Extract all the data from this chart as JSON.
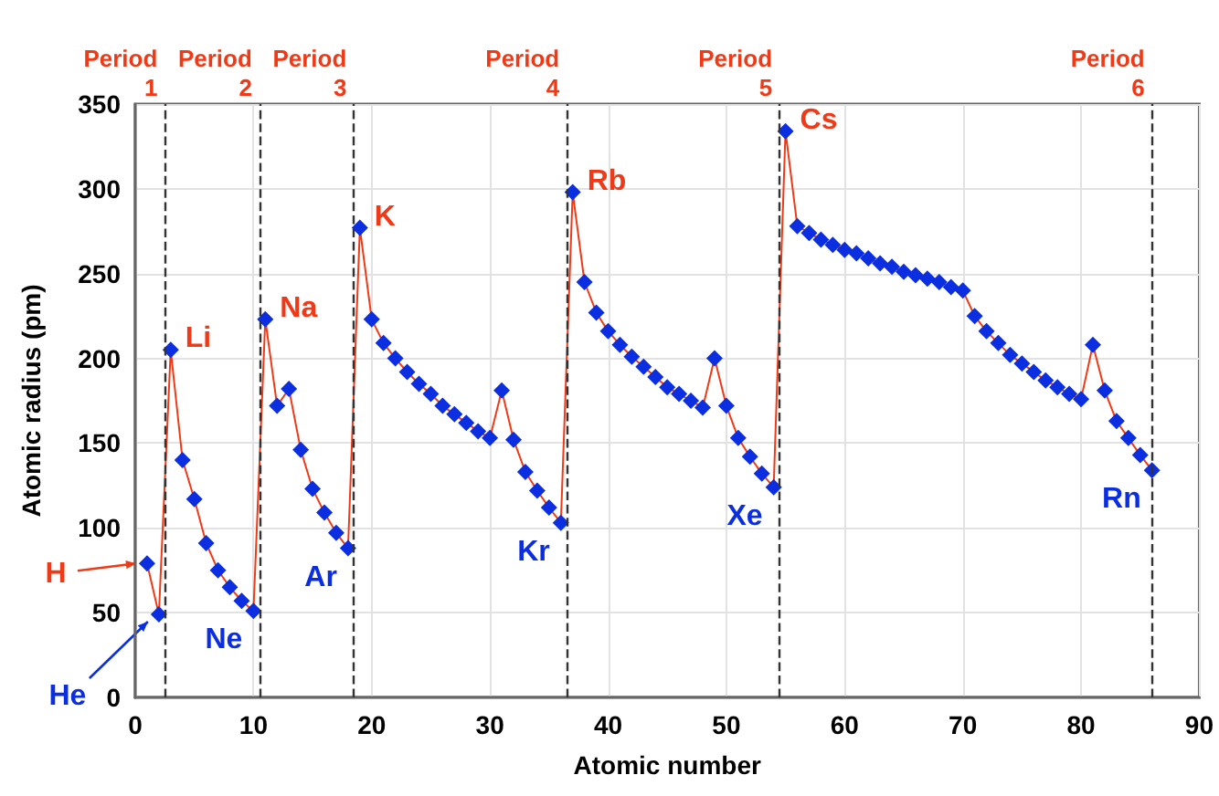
{
  "chart_data": {
    "type": "line",
    "xlabel": "Atomic number",
    "ylabel": "Atomic radius (pm)",
    "x": [
      1,
      2,
      3,
      4,
      5,
      6,
      7,
      8,
      9,
      10,
      11,
      12,
      13,
      14,
      15,
      16,
      17,
      18,
      19,
      20,
      21,
      22,
      23,
      24,
      25,
      26,
      27,
      28,
      29,
      30,
      31,
      32,
      33,
      34,
      35,
      36,
      37,
      38,
      39,
      40,
      41,
      42,
      43,
      44,
      45,
      46,
      47,
      48,
      49,
      50,
      51,
      52,
      53,
      54,
      55,
      56,
      57,
      58,
      59,
      60,
      61,
      62,
      63,
      64,
      65,
      66,
      67,
      68,
      69,
      70,
      71,
      72,
      73,
      74,
      75,
      76,
      77,
      78,
      79,
      80,
      81,
      82,
      83,
      84,
      85,
      86
    ],
    "series": [
      {
        "color": "#0a2ee0",
        "values": [
          79,
          49,
          205,
          140,
          117,
          91,
          75,
          65,
          57,
          51,
          223,
          172,
          182,
          146,
          123,
          109,
          97,
          88,
          277,
          223,
          209,
          200,
          192,
          185,
          179,
          172,
          167,
          162,
          157,
          153,
          181,
          152,
          133,
          122,
          112,
          103,
          298,
          245,
          227,
          216,
          208,
          201,
          195,
          189,
          183,
          179,
          175,
          171,
          200,
          172,
          153,
          142,
          132,
          124,
          334,
          278,
          274,
          270,
          267,
          264,
          262,
          259,
          256,
          254,
          251,
          249,
          247,
          245,
          242,
          240,
          225,
          216,
          209,
          202,
          197,
          192,
          187,
          183,
          179,
          176,
          208,
          181,
          163,
          153,
          143,
          134
        ]
      }
    ],
    "xlim": [
      0,
      90
    ],
    "xticks": [
      0,
      10,
      20,
      30,
      40,
      50,
      60,
      70,
      80,
      90
    ],
    "ylim": [
      0,
      350
    ],
    "yticks": [
      0,
      50,
      100,
      150,
      200,
      250,
      300,
      350
    ],
    "grid": true,
    "marker": "diamond",
    "line_style": "solid",
    "ref_lines": [
      {
        "axis": "x",
        "value": 2.5,
        "label": "Period\n1",
        "line_style": "dashed"
      },
      {
        "axis": "x",
        "value": 10.5,
        "label": "Period\n2",
        "line_style": "dashed"
      },
      {
        "axis": "x",
        "value": 18.5,
        "label": "Period\n3",
        "line_style": "dashed"
      },
      {
        "axis": "x",
        "value": 36.5,
        "label": "Period\n4",
        "line_style": "dashed"
      },
      {
        "axis": "x",
        "value": 54.5,
        "label": "Period\n5",
        "line_style": "dashed"
      },
      {
        "axis": "x",
        "value": 86,
        "label": "Period\n6",
        "line_style": "dashed"
      }
    ],
    "annotations": [
      {
        "text": "H",
        "x": 1,
        "y": 79
      },
      {
        "text": "He",
        "x": 2,
        "y": 49
      },
      {
        "text": "Li",
        "x": 3,
        "y": 205
      },
      {
        "text": "Ne",
        "x": 10,
        "y": 51
      },
      {
        "text": "Na",
        "x": 11,
        "y": 223
      },
      {
        "text": "Ar",
        "x": 18,
        "y": 88
      },
      {
        "text": "K",
        "x": 19,
        "y": 277
      },
      {
        "text": "Kr",
        "x": 36,
        "y": 103
      },
      {
        "text": "Rb",
        "x": 37,
        "y": 298
      },
      {
        "text": "Xe",
        "x": 54,
        "y": 124
      },
      {
        "text": "Cs",
        "x": 55,
        "y": 334
      },
      {
        "text": "Rn",
        "x": 86,
        "y": 134
      }
    ]
  }
}
